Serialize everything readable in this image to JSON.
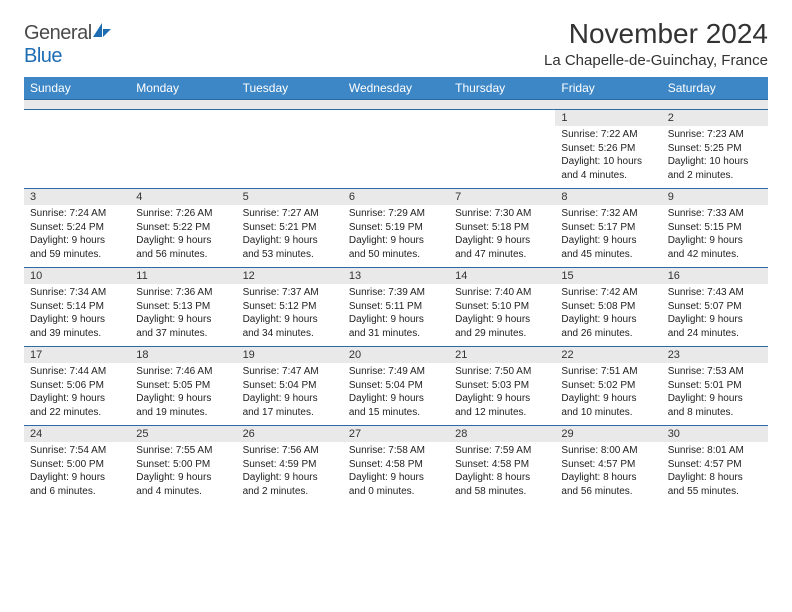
{
  "logo": {
    "word1": "General",
    "word2": "Blue"
  },
  "title": "November 2024",
  "location": "La Chapelle-de-Guinchay, France",
  "colors": {
    "header_bg": "#3d87c7",
    "header_fg": "#ffffff",
    "daynum_bg": "#e9e9e9",
    "cell_border": "#2c6aa3",
    "logo_blue": "#1e6db3",
    "text": "#222222"
  },
  "columns": [
    "Sunday",
    "Monday",
    "Tuesday",
    "Wednesday",
    "Thursday",
    "Friday",
    "Saturday"
  ],
  "weeks": [
    [
      {
        "n": "",
        "sr": "",
        "ss": "",
        "dl": ""
      },
      {
        "n": "",
        "sr": "",
        "ss": "",
        "dl": ""
      },
      {
        "n": "",
        "sr": "",
        "ss": "",
        "dl": ""
      },
      {
        "n": "",
        "sr": "",
        "ss": "",
        "dl": ""
      },
      {
        "n": "",
        "sr": "",
        "ss": "",
        "dl": ""
      },
      {
        "n": "1",
        "sr": "Sunrise: 7:22 AM",
        "ss": "Sunset: 5:26 PM",
        "dl": "Daylight: 10 hours and 4 minutes."
      },
      {
        "n": "2",
        "sr": "Sunrise: 7:23 AM",
        "ss": "Sunset: 5:25 PM",
        "dl": "Daylight: 10 hours and 2 minutes."
      }
    ],
    [
      {
        "n": "3",
        "sr": "Sunrise: 7:24 AM",
        "ss": "Sunset: 5:24 PM",
        "dl": "Daylight: 9 hours and 59 minutes."
      },
      {
        "n": "4",
        "sr": "Sunrise: 7:26 AM",
        "ss": "Sunset: 5:22 PM",
        "dl": "Daylight: 9 hours and 56 minutes."
      },
      {
        "n": "5",
        "sr": "Sunrise: 7:27 AM",
        "ss": "Sunset: 5:21 PM",
        "dl": "Daylight: 9 hours and 53 minutes."
      },
      {
        "n": "6",
        "sr": "Sunrise: 7:29 AM",
        "ss": "Sunset: 5:19 PM",
        "dl": "Daylight: 9 hours and 50 minutes."
      },
      {
        "n": "7",
        "sr": "Sunrise: 7:30 AM",
        "ss": "Sunset: 5:18 PM",
        "dl": "Daylight: 9 hours and 47 minutes."
      },
      {
        "n": "8",
        "sr": "Sunrise: 7:32 AM",
        "ss": "Sunset: 5:17 PM",
        "dl": "Daylight: 9 hours and 45 minutes."
      },
      {
        "n": "9",
        "sr": "Sunrise: 7:33 AM",
        "ss": "Sunset: 5:15 PM",
        "dl": "Daylight: 9 hours and 42 minutes."
      }
    ],
    [
      {
        "n": "10",
        "sr": "Sunrise: 7:34 AM",
        "ss": "Sunset: 5:14 PM",
        "dl": "Daylight: 9 hours and 39 minutes."
      },
      {
        "n": "11",
        "sr": "Sunrise: 7:36 AM",
        "ss": "Sunset: 5:13 PM",
        "dl": "Daylight: 9 hours and 37 minutes."
      },
      {
        "n": "12",
        "sr": "Sunrise: 7:37 AM",
        "ss": "Sunset: 5:12 PM",
        "dl": "Daylight: 9 hours and 34 minutes."
      },
      {
        "n": "13",
        "sr": "Sunrise: 7:39 AM",
        "ss": "Sunset: 5:11 PM",
        "dl": "Daylight: 9 hours and 31 minutes."
      },
      {
        "n": "14",
        "sr": "Sunrise: 7:40 AM",
        "ss": "Sunset: 5:10 PM",
        "dl": "Daylight: 9 hours and 29 minutes."
      },
      {
        "n": "15",
        "sr": "Sunrise: 7:42 AM",
        "ss": "Sunset: 5:08 PM",
        "dl": "Daylight: 9 hours and 26 minutes."
      },
      {
        "n": "16",
        "sr": "Sunrise: 7:43 AM",
        "ss": "Sunset: 5:07 PM",
        "dl": "Daylight: 9 hours and 24 minutes."
      }
    ],
    [
      {
        "n": "17",
        "sr": "Sunrise: 7:44 AM",
        "ss": "Sunset: 5:06 PM",
        "dl": "Daylight: 9 hours and 22 minutes."
      },
      {
        "n": "18",
        "sr": "Sunrise: 7:46 AM",
        "ss": "Sunset: 5:05 PM",
        "dl": "Daylight: 9 hours and 19 minutes."
      },
      {
        "n": "19",
        "sr": "Sunrise: 7:47 AM",
        "ss": "Sunset: 5:04 PM",
        "dl": "Daylight: 9 hours and 17 minutes."
      },
      {
        "n": "20",
        "sr": "Sunrise: 7:49 AM",
        "ss": "Sunset: 5:04 PM",
        "dl": "Daylight: 9 hours and 15 minutes."
      },
      {
        "n": "21",
        "sr": "Sunrise: 7:50 AM",
        "ss": "Sunset: 5:03 PM",
        "dl": "Daylight: 9 hours and 12 minutes."
      },
      {
        "n": "22",
        "sr": "Sunrise: 7:51 AM",
        "ss": "Sunset: 5:02 PM",
        "dl": "Daylight: 9 hours and 10 minutes."
      },
      {
        "n": "23",
        "sr": "Sunrise: 7:53 AM",
        "ss": "Sunset: 5:01 PM",
        "dl": "Daylight: 9 hours and 8 minutes."
      }
    ],
    [
      {
        "n": "24",
        "sr": "Sunrise: 7:54 AM",
        "ss": "Sunset: 5:00 PM",
        "dl": "Daylight: 9 hours and 6 minutes."
      },
      {
        "n": "25",
        "sr": "Sunrise: 7:55 AM",
        "ss": "Sunset: 5:00 PM",
        "dl": "Daylight: 9 hours and 4 minutes."
      },
      {
        "n": "26",
        "sr": "Sunrise: 7:56 AM",
        "ss": "Sunset: 4:59 PM",
        "dl": "Daylight: 9 hours and 2 minutes."
      },
      {
        "n": "27",
        "sr": "Sunrise: 7:58 AM",
        "ss": "Sunset: 4:58 PM",
        "dl": "Daylight: 9 hours and 0 minutes."
      },
      {
        "n": "28",
        "sr": "Sunrise: 7:59 AM",
        "ss": "Sunset: 4:58 PM",
        "dl": "Daylight: 8 hours and 58 minutes."
      },
      {
        "n": "29",
        "sr": "Sunrise: 8:00 AM",
        "ss": "Sunset: 4:57 PM",
        "dl": "Daylight: 8 hours and 56 minutes."
      },
      {
        "n": "30",
        "sr": "Sunrise: 8:01 AM",
        "ss": "Sunset: 4:57 PM",
        "dl": "Daylight: 8 hours and 55 minutes."
      }
    ]
  ]
}
